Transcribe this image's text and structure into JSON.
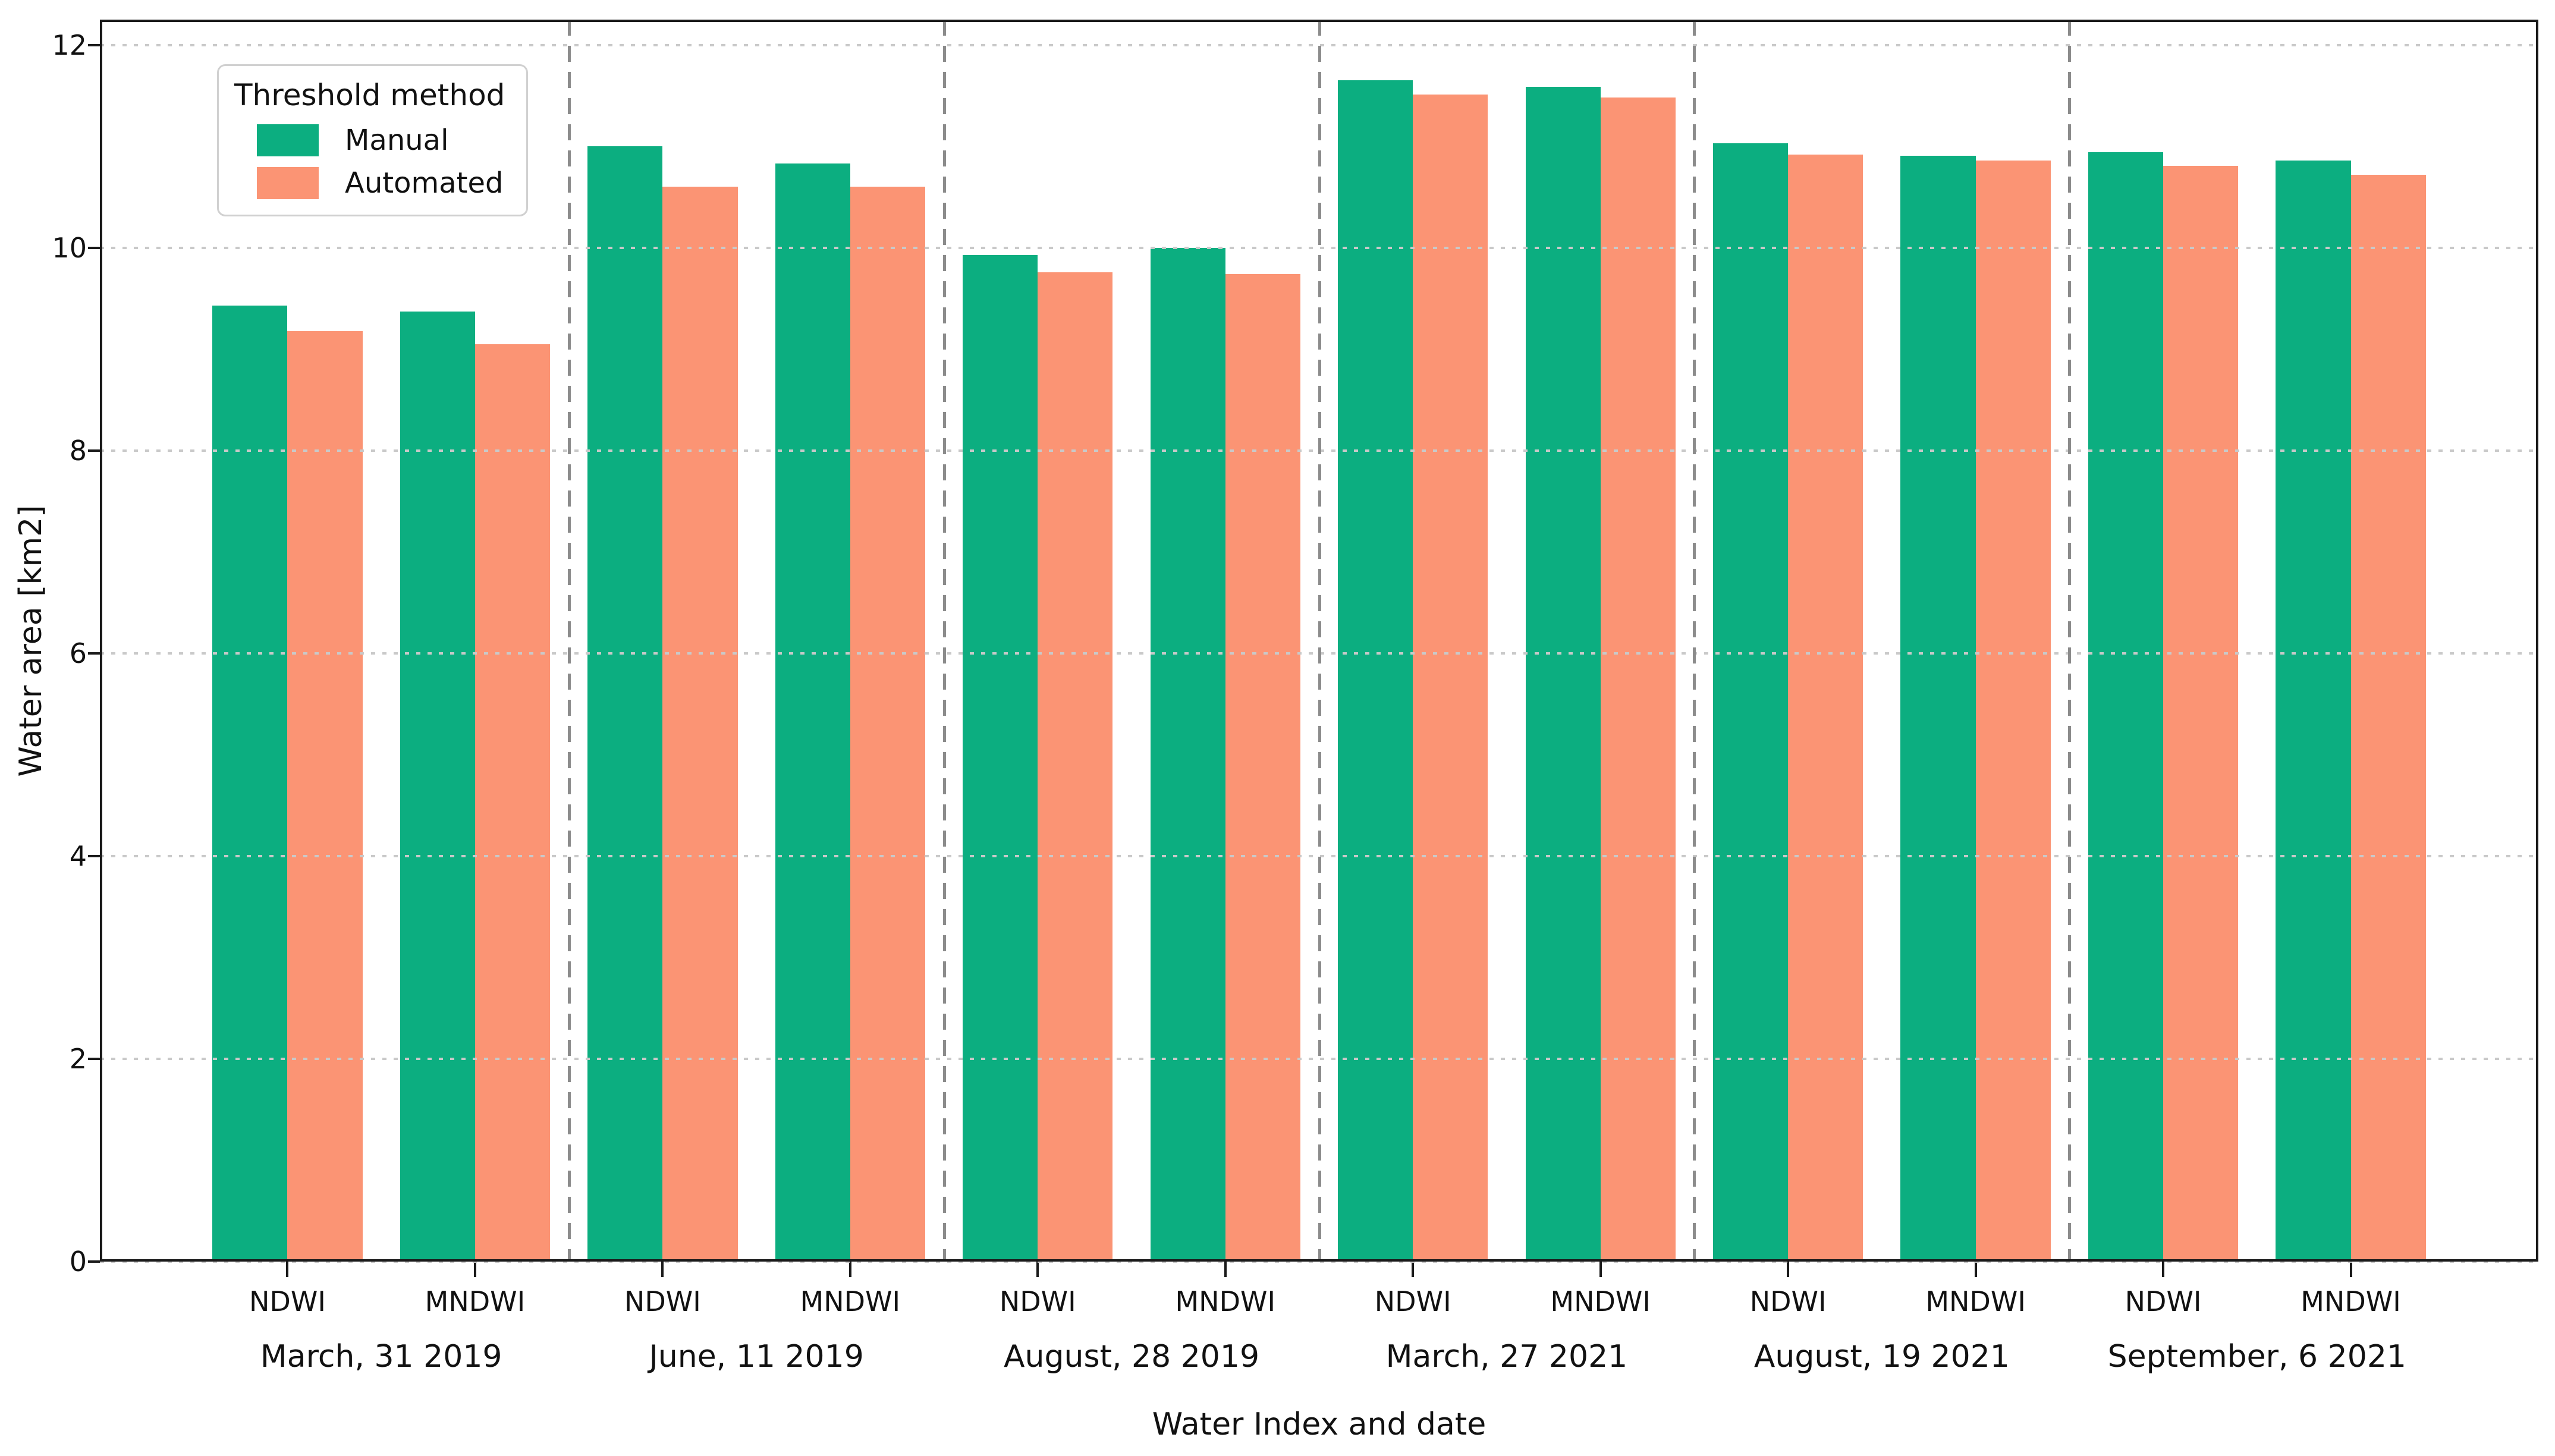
{
  "chart_data": {
    "type": "bar",
    "title": "",
    "xlabel": "Water Index and date",
    "ylabel": "Water area [km2]",
    "ylim": [
      0,
      12.25
    ],
    "xlim": [
      -1,
      12
    ],
    "yticks": [
      0,
      2,
      4,
      6,
      8,
      10,
      12
    ],
    "grid": "horizontal dotted lines at y ticks, drawn above bars",
    "bar_width_data_units": 0.4,
    "group_separators_at": [
      1.5,
      3.5,
      5.5,
      7.5,
      9.5
    ],
    "groups": [
      {
        "label": "March, 31 2019",
        "ticks": [
          "NDWI",
          "MNDWI"
        ]
      },
      {
        "label": "June, 11 2019",
        "ticks": [
          "NDWI",
          "MNDWI"
        ]
      },
      {
        "label": "August, 28 2019",
        "ticks": [
          "NDWI",
          "MNDWI"
        ]
      },
      {
        "label": "March, 27 2021",
        "ticks": [
          "NDWI",
          "MNDWI"
        ]
      },
      {
        "label": "August, 19 2021",
        "ticks": [
          "NDWI",
          "MNDWI"
        ]
      },
      {
        "label": "September, 6 2021",
        "ticks": [
          "NDWI",
          "MNDWI"
        ]
      }
    ],
    "series": [
      {
        "name": "Manual",
        "color": "#0cae80",
        "values": [
          9.43,
          9.37,
          11.0,
          10.83,
          9.93,
          10.0,
          11.65,
          11.59,
          11.03,
          10.91,
          10.94,
          10.86
        ]
      },
      {
        "name": "Automated",
        "color": "#fb9474",
        "values": [
          9.18,
          9.05,
          10.6,
          10.6,
          9.76,
          9.74,
          11.51,
          11.48,
          10.92,
          10.86,
          10.81,
          10.72
        ]
      }
    ],
    "legend": {
      "title": "Threshold method",
      "position": "upper-left",
      "entries": [
        {
          "label": "Manual",
          "color": "#0cae80"
        },
        {
          "label": "Automated",
          "color": "#fb9474"
        }
      ]
    },
    "colors": {
      "manual": "#0cae80",
      "automated": "#fb9474",
      "gridline": "#c9c9c9",
      "separator": "#8c8c8c",
      "spine": "#1a1a1a"
    }
  }
}
